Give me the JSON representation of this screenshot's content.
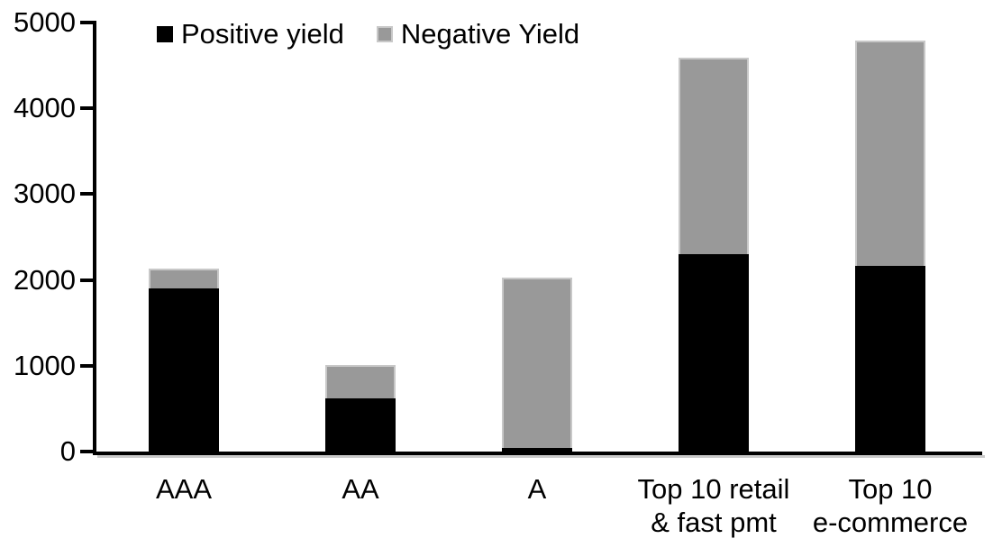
{
  "chart_data": {
    "type": "bar",
    "stacked": true,
    "categories": [
      "AAA",
      "AA",
      "A",
      "Top 10 retail\n& fast pmt",
      "Top 10\ne-commerce"
    ],
    "series": [
      {
        "name": "Positive yield",
        "color": "#000000",
        "values": [
          1900,
          620,
          40,
          2300,
          2160
        ]
      },
      {
        "name": "Negative Yield",
        "color": "#999999",
        "values": [
          230,
          390,
          1990,
          2290,
          2630
        ]
      }
    ],
    "totals": [
      2130,
      1010,
      2030,
      4590,
      4790
    ],
    "ylim": [
      0,
      5000
    ],
    "yticks": [
      0,
      1000,
      2000,
      3000,
      4000,
      5000
    ],
    "grid": false,
    "legend_position": "top",
    "segment_border_color": "#c8c8c8"
  }
}
